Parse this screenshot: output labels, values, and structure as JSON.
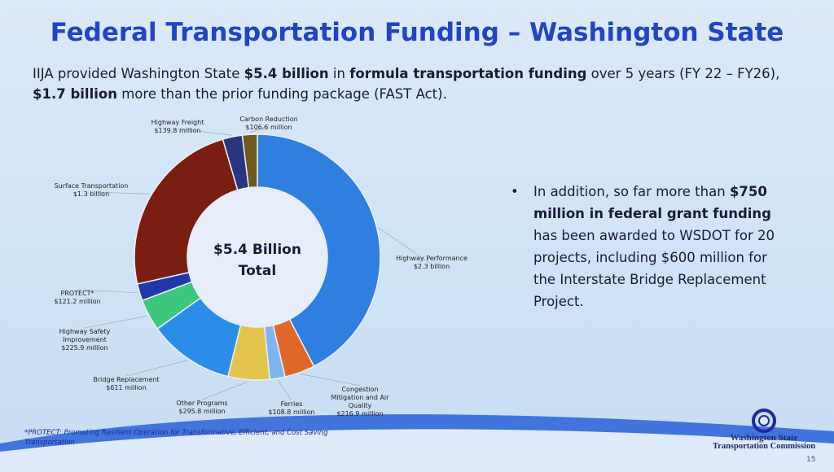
{
  "title": "Federal Transportation Funding – Washington State",
  "subtitle": [
    {
      "text": "IIJA provided Washington State ",
      "bold": false
    },
    {
      "text": "$5.4 billion",
      "bold": true
    },
    {
      "text": " in ",
      "bold": false
    },
    {
      "text": "formula transportation funding",
      "bold": true
    },
    {
      "text": " over 5 years (FY 22 – FY26), ",
      "bold": false
    },
    {
      "text": "$1.7 billion",
      "bold": true
    },
    {
      "text": " more than the prior funding package (FAST Act).",
      "bold": false
    }
  ],
  "bullet": [
    {
      "text": "In addition, so far more than ",
      "bold": false
    },
    {
      "text": "$750 million in federal grant funding",
      "bold": true
    },
    {
      "text": " has been awarded to WSDOT for 20 projects, including $600 million for the Interstate Bridge Replacement Project.",
      "bold": false
    }
  ],
  "footnote": "*PROTECT: Promoting Resilient Operation for Transformative, Efficient, and Cost Saving Transportation",
  "logo_line1": "Washington State",
  "logo_line2": "Transportation Commission",
  "page_number": 15,
  "chart_data": {
    "type": "donut",
    "center_label": [
      "$5.4 Billion",
      "Total"
    ],
    "categories": [
      "Highway Performance",
      "Congestion Mitigation and Air Quality",
      "Ferries",
      "Other Programs",
      "Bridge Replacement",
      "Highway Safety Improvement",
      "PROTECT*",
      "Surface Transportation",
      "Highway Freight",
      "Carbon Reduction"
    ],
    "values": [
      2300,
      216.9,
      108.8,
      295.8,
      611,
      225.9,
      121.2,
      1300,
      139.8,
      106.6
    ],
    "value_labels": [
      "$2.3 billion",
      "$216.9 million",
      "$108.8 million",
      "$295.8 million",
      "$611 million",
      "$225.9 million",
      "$121.2 million",
      "$1.3 billion",
      "$139.8 million",
      "$106.6 million"
    ],
    "colors": [
      "#2f7fe0",
      "#e0692a",
      "#7fb4f0",
      "#e3c44a",
      "#2a8ee8",
      "#3cc87a",
      "#2238a8",
      "#7a1e12",
      "#2a3580",
      "#6e5a1c"
    ]
  }
}
